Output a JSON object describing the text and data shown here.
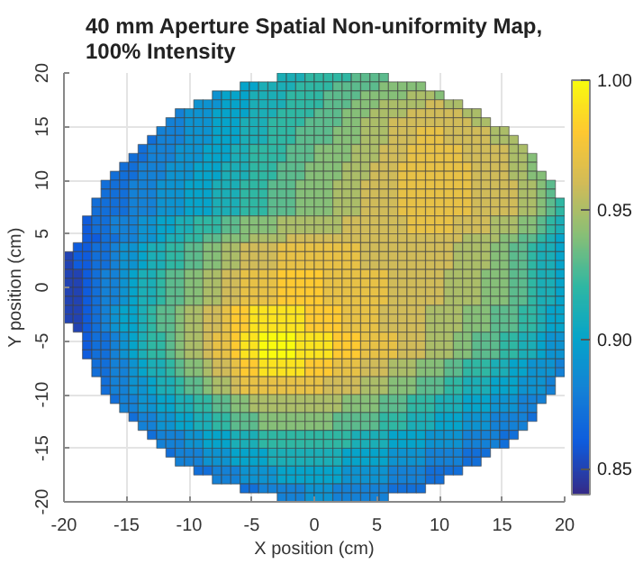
{
  "chart_data": {
    "type": "heatmap",
    "title": "40 mm Aperture Spatial Non-uniformity Map,\n100% Intensity",
    "xlabel": "X position (cm)",
    "ylabel": "Y position (cm)",
    "xlim": [
      -20,
      20
    ],
    "ylim": [
      -20,
      20
    ],
    "xticks": [
      -20,
      -15,
      -10,
      -5,
      0,
      5,
      10,
      15,
      20
    ],
    "yticks": [
      -20,
      -15,
      -10,
      -5,
      0,
      5,
      10,
      15,
      20
    ],
    "clim": [
      0.84,
      1.0
    ],
    "cticks": [
      {
        "value": 0.85,
        "label": "0.85"
      },
      {
        "value": 0.9,
        "label": "0.90"
      },
      {
        "value": 0.95,
        "label": "0.95"
      },
      {
        "value": 1.0,
        "label": "1.00"
      }
    ],
    "grid": true,
    "cells": [
      [
        null,
        null,
        null,
        null,
        null,
        null,
        null,
        null,
        null,
        null,
        null,
        null,
        null,
        null,
        null,
        null,
        null,
        null,
        null,
        null,
        null,
        null,
        null,
        0.91,
        0.91,
        0.91,
        0.92,
        0.92,
        0.92,
        0.92,
        0.92,
        0.93,
        0.93,
        0.93,
        0.93,
        null,
        null,
        null,
        null,
        null,
        null,
        null,
        null,
        null,
        null,
        null,
        null,
        null,
        null,
        null,
        null,
        null,
        null,
        null
      ],
      [
        null,
        null,
        null,
        null,
        null,
        null,
        null,
        null,
        null,
        null,
        null,
        null,
        null,
        null,
        null,
        null,
        null,
        null,
        null,
        0.9,
        0.9,
        0.91,
        0.91,
        0.91,
        0.91,
        0.92,
        0.92,
        0.92,
        0.92,
        0.93,
        0.93,
        0.93,
        0.93,
        0.93,
        0.94,
        0.94,
        0.94,
        0.94,
        0.94,
        null,
        null,
        null,
        null,
        null,
        null,
        null,
        null,
        null,
        null,
        null,
        null,
        null,
        null,
        null
      ],
      [
        null,
        null,
        null,
        null,
        null,
        null,
        null,
        null,
        null,
        null,
        null,
        null,
        null,
        null,
        null,
        null,
        0.89,
        0.9,
        0.9,
        0.9,
        0.91,
        0.91,
        0.91,
        0.91,
        0.92,
        0.92,
        0.92,
        0.92,
        0.93,
        0.93,
        0.93,
        0.93,
        0.94,
        0.94,
        0.94,
        0.94,
        0.94,
        0.95,
        0.95,
        0.95,
        0.94,
        null,
        null,
        null,
        null,
        null,
        null,
        null,
        null,
        null,
        null,
        null,
        null,
        null
      ],
      [
        null,
        null,
        null,
        null,
        null,
        null,
        null,
        null,
        null,
        null,
        null,
        null,
        null,
        null,
        0.89,
        0.89,
        0.89,
        0.9,
        0.9,
        0.9,
        0.91,
        0.91,
        0.91,
        0.91,
        0.92,
        0.92,
        0.92,
        0.92,
        0.93,
        0.93,
        0.93,
        0.94,
        0.94,
        0.94,
        0.95,
        0.95,
        0.95,
        0.95,
        0.95,
        0.96,
        0.96,
        0.95,
        0.95,
        null,
        null,
        null,
        null,
        null,
        null,
        null,
        null,
        null,
        null,
        null
      ],
      [
        null,
        null,
        null,
        null,
        null,
        null,
        null,
        null,
        null,
        null,
        null,
        null,
        0.88,
        0.89,
        0.89,
        0.89,
        0.9,
        0.9,
        0.9,
        0.9,
        0.91,
        0.91,
        0.91,
        0.92,
        0.92,
        0.92,
        0.92,
        0.93,
        0.93,
        0.93,
        0.94,
        0.94,
        0.94,
        0.95,
        0.95,
        0.95,
        0.95,
        0.96,
        0.96,
        0.96,
        0.96,
        0.96,
        0.96,
        0.95,
        0.95,
        null,
        null,
        null,
        null,
        null,
        null,
        null,
        null,
        null
      ],
      [
        null,
        null,
        null,
        null,
        null,
        null,
        null,
        null,
        null,
        null,
        null,
        0.88,
        0.88,
        0.89,
        0.89,
        0.89,
        0.9,
        0.9,
        0.9,
        0.91,
        0.91,
        0.91,
        0.92,
        0.92,
        0.92,
        0.92,
        0.93,
        0.93,
        0.93,
        0.93,
        0.94,
        0.94,
        0.95,
        0.95,
        0.95,
        0.96,
        0.96,
        0.96,
        0.96,
        0.96,
        0.96,
        0.96,
        0.96,
        0.96,
        0.95,
        0.95,
        null,
        null,
        null,
        null,
        null,
        null,
        null,
        null
      ],
      [
        null,
        null,
        null,
        null,
        null,
        null,
        null,
        null,
        null,
        null,
        0.88,
        0.88,
        0.88,
        0.89,
        0.89,
        0.89,
        0.9,
        0.9,
        0.9,
        0.91,
        0.91,
        0.91,
        0.92,
        0.92,
        0.92,
        0.93,
        0.93,
        0.93,
        0.93,
        0.94,
        0.94,
        0.94,
        0.95,
        0.95,
        0.95,
        0.96,
        0.96,
        0.96,
        0.97,
        0.97,
        0.97,
        0.96,
        0.96,
        0.96,
        0.96,
        0.96,
        0.95,
        0.95,
        null,
        null,
        null,
        null,
        null,
        null
      ],
      [
        null,
        null,
        null,
        null,
        null,
        null,
        null,
        null,
        null,
        0.87,
        0.88,
        0.88,
        0.88,
        0.89,
        0.89,
        0.89,
        0.9,
        0.9,
        0.9,
        0.91,
        0.91,
        0.91,
        0.92,
        0.92,
        0.92,
        0.93,
        0.93,
        0.93,
        0.93,
        0.94,
        0.94,
        0.94,
        0.95,
        0.95,
        0.95,
        0.96,
        0.96,
        0.96,
        0.97,
        0.97,
        0.97,
        0.96,
        0.96,
        0.96,
        0.96,
        0.96,
        0.95,
        0.95,
        0.95,
        null,
        null,
        null,
        null,
        null
      ],
      [
        null,
        null,
        null,
        null,
        null,
        null,
        null,
        null,
        0.87,
        0.88,
        0.88,
        0.88,
        0.89,
        0.89,
        0.89,
        0.9,
        0.9,
        0.9,
        0.91,
        0.91,
        0.92,
        0.92,
        0.92,
        0.92,
        0.93,
        0.93,
        0.93,
        0.94,
        0.94,
        0.94,
        0.94,
        0.95,
        0.95,
        0.95,
        0.96,
        0.96,
        0.96,
        0.97,
        0.97,
        0.97,
        0.97,
        0.97,
        0.97,
        0.96,
        0.96,
        0.96,
        0.96,
        0.96,
        0.95,
        0.95,
        null,
        null,
        null,
        null
      ],
      [
        null,
        null,
        null,
        null,
        null,
        null,
        null,
        0.87,
        0.87,
        0.88,
        0.88,
        0.88,
        0.89,
        0.89,
        0.89,
        0.9,
        0.9,
        0.9,
        0.91,
        0.91,
        0.92,
        0.92,
        0.92,
        0.92,
        0.93,
        0.93,
        0.93,
        0.94,
        0.94,
        0.94,
        0.94,
        0.95,
        0.95,
        0.95,
        0.96,
        0.96,
        0.96,
        0.97,
        0.97,
        0.97,
        0.97,
        0.97,
        0.97,
        0.96,
        0.96,
        0.96,
        0.96,
        0.96,
        0.95,
        0.95,
        0.94,
        null,
        null,
        null
      ],
      [
        null,
        null,
        null,
        null,
        null,
        null,
        0.87,
        0.87,
        0.88,
        0.88,
        0.88,
        0.89,
        0.89,
        0.89,
        0.9,
        0.9,
        0.9,
        0.91,
        0.91,
        0.91,
        0.92,
        0.92,
        0.92,
        0.93,
        0.93,
        0.93,
        0.94,
        0.94,
        0.94,
        0.94,
        0.95,
        0.95,
        0.95,
        0.96,
        0.96,
        0.96,
        0.97,
        0.97,
        0.97,
        0.97,
        0.97,
        0.97,
        0.97,
        0.97,
        0.96,
        0.96,
        0.96,
        0.96,
        0.95,
        0.95,
        0.94,
        null,
        null,
        null
      ],
      [
        null,
        null,
        null,
        null,
        null,
        0.87,
        0.87,
        0.87,
        0.88,
        0.88,
        0.88,
        0.89,
        0.89,
        0.89,
        0.9,
        0.9,
        0.9,
        0.91,
        0.91,
        0.91,
        0.92,
        0.92,
        0.92,
        0.93,
        0.93,
        0.93,
        0.94,
        0.94,
        0.94,
        0.94,
        0.95,
        0.95,
        0.95,
        0.96,
        0.96,
        0.96,
        0.97,
        0.97,
        0.97,
        0.97,
        0.97,
        0.97,
        0.97,
        0.97,
        0.96,
        0.96,
        0.96,
        0.96,
        0.95,
        0.95,
        0.94,
        0.94,
        null,
        null
      ],
      [
        null,
        null,
        null,
        null,
        0.87,
        0.87,
        0.87,
        0.88,
        0.88,
        0.88,
        0.89,
        0.89,
        0.89,
        0.9,
        0.9,
        0.9,
        0.91,
        0.91,
        0.91,
        0.92,
        0.92,
        0.92,
        0.93,
        0.93,
        0.93,
        0.94,
        0.94,
        0.94,
        0.94,
        0.95,
        0.95,
        0.95,
        0.96,
        0.96,
        0.96,
        0.96,
        0.97,
        0.97,
        0.97,
        0.97,
        0.97,
        0.97,
        0.97,
        0.97,
        0.96,
        0.96,
        0.96,
        0.96,
        0.96,
        0.95,
        0.95,
        0.94,
        0.93,
        null
      ],
      [
        null,
        null,
        null,
        null,
        0.87,
        0.87,
        0.87,
        0.88,
        0.88,
        0.88,
        0.89,
        0.89,
        0.89,
        0.9,
        0.9,
        0.9,
        0.91,
        0.91,
        0.91,
        0.92,
        0.92,
        0.92,
        0.93,
        0.93,
        0.93,
        0.94,
        0.94,
        0.94,
        0.94,
        0.95,
        0.95,
        0.95,
        0.96,
        0.96,
        0.96,
        0.96,
        0.97,
        0.97,
        0.97,
        0.97,
        0.97,
        0.97,
        0.97,
        0.97,
        0.96,
        0.96,
        0.96,
        0.96,
        0.96,
        0.95,
        0.95,
        0.94,
        0.93,
        null
      ],
      [
        null,
        null,
        null,
        0.87,
        0.87,
        0.87,
        0.87,
        0.88,
        0.88,
        0.88,
        0.89,
        0.89,
        0.89,
        0.9,
        0.9,
        0.9,
        0.91,
        0.91,
        0.91,
        0.92,
        0.92,
        0.92,
        0.93,
        0.93,
        0.93,
        0.94,
        0.94,
        0.94,
        0.94,
        0.95,
        0.95,
        0.95,
        0.96,
        0.96,
        0.96,
        0.96,
        0.97,
        0.97,
        0.97,
        0.97,
        0.97,
        0.97,
        0.97,
        0.97,
        0.96,
        0.96,
        0.96,
        0.96,
        0.96,
        0.95,
        0.95,
        0.94,
        0.93,
        0.92
      ],
      [
        null,
        null,
        null,
        0.87,
        0.87,
        0.87,
        0.87,
        0.88,
        0.88,
        0.88,
        0.89,
        0.89,
        0.89,
        0.9,
        0.9,
        0.9,
        0.91,
        0.91,
        0.91,
        0.92,
        0.92,
        0.92,
        0.93,
        0.93,
        0.93,
        0.94,
        0.94,
        0.94,
        0.94,
        0.95,
        0.95,
        0.95,
        0.96,
        0.96,
        0.96,
        0.96,
        0.97,
        0.97,
        0.97,
        0.97,
        0.97,
        0.97,
        0.97,
        0.97,
        0.96,
        0.96,
        0.96,
        0.96,
        0.96,
        0.95,
        0.95,
        0.94,
        0.93,
        0.92
      ],
      [
        null,
        null,
        0.86,
        0.87,
        0.87,
        0.88,
        0.88,
        0.88,
        0.89,
        0.89,
        0.9,
        0.9,
        0.91,
        0.91,
        0.92,
        0.92,
        0.92,
        0.93,
        0.93,
        0.94,
        0.94,
        0.94,
        0.94,
        0.95,
        0.95,
        0.95,
        0.95,
        0.95,
        0.95,
        0.95,
        0.96,
        0.96,
        0.96,
        0.96,
        0.96,
        0.96,
        0.96,
        0.97,
        0.97,
        0.97,
        0.97,
        0.97,
        0.96,
        0.96,
        0.96,
        0.96,
        0.95,
        0.95,
        0.95,
        0.94,
        0.94,
        0.93,
        0.92,
        0.91
      ],
      [
        null,
        null,
        0.86,
        0.87,
        0.87,
        0.88,
        0.88,
        0.88,
        0.89,
        0.89,
        0.9,
        0.9,
        0.91,
        0.91,
        0.92,
        0.92,
        0.92,
        0.93,
        0.93,
        0.94,
        0.94,
        0.94,
        0.94,
        0.95,
        0.95,
        0.95,
        0.95,
        0.95,
        0.95,
        0.95,
        0.96,
        0.96,
        0.96,
        0.96,
        0.96,
        0.96,
        0.96,
        0.97,
        0.97,
        0.97,
        0.97,
        0.97,
        0.96,
        0.96,
        0.96,
        0.96,
        0.95,
        0.95,
        0.95,
        0.94,
        0.94,
        0.93,
        0.92,
        0.91
      ],
      [
        null,
        null,
        0.86,
        0.86,
        0.87,
        0.87,
        0.88,
        0.88,
        0.89,
        0.89,
        0.9,
        0.91,
        0.91,
        0.92,
        0.92,
        0.93,
        0.93,
        0.94,
        0.94,
        0.94,
        0.95,
        0.95,
        0.95,
        0.95,
        0.96,
        0.96,
        0.96,
        0.96,
        0.96,
        0.96,
        0.96,
        0.96,
        0.96,
        0.96,
        0.96,
        0.96,
        0.96,
        0.96,
        0.96,
        0.96,
        0.96,
        0.96,
        0.96,
        0.95,
        0.95,
        0.95,
        0.95,
        0.94,
        0.94,
        0.93,
        0.93,
        0.92,
        0.91,
        0.9
      ],
      [
        null,
        0.86,
        0.86,
        0.87,
        0.87,
        0.88,
        0.89,
        0.89,
        0.9,
        0.91,
        0.91,
        0.92,
        0.92,
        0.93,
        0.93,
        0.94,
        0.94,
        0.95,
        0.95,
        0.96,
        0.96,
        0.96,
        0.96,
        0.97,
        0.97,
        0.97,
        0.97,
        0.97,
        0.97,
        0.97,
        0.97,
        0.97,
        0.96,
        0.96,
        0.96,
        0.96,
        0.96,
        0.96,
        0.96,
        0.96,
        0.96,
        0.96,
        0.95,
        0.95,
        0.95,
        0.95,
        0.94,
        0.94,
        0.93,
        0.93,
        0.92,
        0.91,
        0.91,
        0.9
      ],
      [
        0.85,
        0.86,
        0.86,
        0.87,
        0.87,
        0.88,
        0.89,
        0.89,
        0.9,
        0.91,
        0.91,
        0.92,
        0.92,
        0.93,
        0.93,
        0.94,
        0.94,
        0.95,
        0.95,
        0.96,
        0.96,
        0.96,
        0.96,
        0.97,
        0.97,
        0.97,
        0.97,
        0.97,
        0.97,
        0.97,
        0.97,
        0.97,
        0.96,
        0.96,
        0.96,
        0.96,
        0.96,
        0.96,
        0.96,
        0.96,
        0.96,
        0.96,
        0.95,
        0.95,
        0.95,
        0.95,
        0.94,
        0.94,
        0.93,
        0.93,
        0.92,
        0.91,
        0.91,
        0.9
      ],
      [
        0.85,
        0.86,
        0.86,
        0.87,
        0.87,
        0.88,
        0.89,
        0.89,
        0.9,
        0.91,
        0.91,
        0.92,
        0.92,
        0.93,
        0.93,
        0.94,
        0.94,
        0.95,
        0.95,
        0.96,
        0.96,
        0.96,
        0.96,
        0.97,
        0.97,
        0.97,
        0.97,
        0.97,
        0.97,
        0.97,
        0.97,
        0.97,
        0.96,
        0.96,
        0.96,
        0.96,
        0.96,
        0.96,
        0.96,
        0.96,
        0.96,
        0.96,
        0.95,
        0.95,
        0.95,
        0.95,
        0.94,
        0.94,
        0.93,
        0.93,
        0.92,
        0.91,
        0.91,
        0.9
      ],
      [
        0.85,
        0.85,
        0.86,
        0.87,
        0.88,
        0.88,
        0.89,
        0.9,
        0.91,
        0.91,
        0.92,
        0.93,
        0.93,
        0.94,
        0.94,
        0.95,
        0.95,
        0.96,
        0.96,
        0.97,
        0.97,
        0.97,
        0.97,
        0.98,
        0.98,
        0.98,
        0.98,
        0.98,
        0.97,
        0.97,
        0.97,
        0.97,
        0.97,
        0.97,
        0.97,
        0.96,
        0.96,
        0.96,
        0.96,
        0.96,
        0.96,
        0.95,
        0.95,
        0.95,
        0.95,
        0.94,
        0.94,
        0.94,
        0.93,
        0.93,
        0.92,
        0.91,
        0.91,
        0.9
      ],
      [
        0.85,
        0.85,
        0.86,
        0.87,
        0.88,
        0.88,
        0.89,
        0.9,
        0.91,
        0.91,
        0.92,
        0.93,
        0.93,
        0.94,
        0.94,
        0.95,
        0.95,
        0.96,
        0.96,
        0.97,
        0.97,
        0.97,
        0.97,
        0.98,
        0.98,
        0.98,
        0.98,
        0.98,
        0.97,
        0.97,
        0.97,
        0.97,
        0.97,
        0.97,
        0.97,
        0.96,
        0.96,
        0.96,
        0.96,
        0.96,
        0.96,
        0.95,
        0.95,
        0.95,
        0.95,
        0.94,
        0.94,
        0.94,
        0.93,
        0.93,
        0.92,
        0.91,
        0.91,
        0.9
      ],
      [
        0.85,
        0.85,
        0.86,
        0.87,
        0.88,
        0.88,
        0.89,
        0.9,
        0.91,
        0.91,
        0.92,
        0.93,
        0.93,
        0.94,
        0.94,
        0.95,
        0.95,
        0.96,
        0.96,
        0.97,
        0.97,
        0.97,
        0.97,
        0.98,
        0.98,
        0.98,
        0.98,
        0.98,
        0.97,
        0.97,
        0.97,
        0.97,
        0.97,
        0.97,
        0.97,
        0.96,
        0.96,
        0.96,
        0.96,
        0.96,
        0.96,
        0.95,
        0.95,
        0.95,
        0.95,
        0.94,
        0.94,
        0.94,
        0.93,
        0.93,
        0.92,
        0.91,
        0.91,
        0.9
      ],
      [
        0.85,
        0.85,
        0.86,
        0.87,
        0.88,
        0.88,
        0.89,
        0.9,
        0.91,
        0.91,
        0.92,
        0.93,
        0.93,
        0.94,
        0.94,
        0.95,
        0.95,
        0.96,
        0.96,
        0.97,
        0.97,
        0.97,
        0.97,
        0.98,
        0.98,
        0.98,
        0.98,
        0.98,
        0.97,
        0.97,
        0.97,
        0.97,
        0.97,
        0.97,
        0.97,
        0.96,
        0.96,
        0.96,
        0.96,
        0.96,
        0.96,
        0.95,
        0.95,
        0.95,
        0.95,
        0.94,
        0.94,
        0.94,
        0.93,
        0.93,
        0.92,
        0.91,
        0.91,
        0.9
      ],
      [
        0.85,
        0.85,
        0.86,
        0.87,
        0.88,
        0.89,
        0.9,
        0.9,
        0.91,
        0.92,
        0.93,
        0.93,
        0.94,
        0.95,
        0.95,
        0.96,
        0.96,
        0.97,
        0.98,
        0.98,
        0.99,
        0.99,
        0.99,
        0.99,
        0.99,
        0.99,
        0.98,
        0.98,
        0.98,
        0.98,
        0.97,
        0.97,
        0.97,
        0.97,
        0.96,
        0.96,
        0.96,
        0.96,
        0.96,
        0.95,
        0.95,
        0.95,
        0.95,
        0.94,
        0.94,
        0.94,
        0.93,
        0.93,
        0.93,
        0.92,
        0.92,
        0.91,
        0.9,
        0.9
      ],
      [
        0.85,
        0.85,
        0.86,
        0.87,
        0.88,
        0.89,
        0.9,
        0.9,
        0.91,
        0.92,
        0.93,
        0.93,
        0.94,
        0.95,
        0.95,
        0.96,
        0.96,
        0.97,
        0.98,
        0.98,
        0.99,
        0.99,
        0.99,
        0.99,
        0.99,
        0.99,
        0.98,
        0.98,
        0.98,
        0.98,
        0.97,
        0.97,
        0.97,
        0.97,
        0.96,
        0.96,
        0.96,
        0.96,
        0.96,
        0.95,
        0.95,
        0.95,
        0.95,
        0.94,
        0.94,
        0.94,
        0.93,
        0.93,
        0.93,
        0.92,
        0.92,
        0.91,
        0.9,
        0.9
      ],
      [
        null,
        0.85,
        0.86,
        0.87,
        0.88,
        0.89,
        0.9,
        0.9,
        0.91,
        0.92,
        0.93,
        0.93,
        0.94,
        0.95,
        0.95,
        0.96,
        0.96,
        0.97,
        0.98,
        0.98,
        0.99,
        0.99,
        0.99,
        0.99,
        0.99,
        0.99,
        0.98,
        0.98,
        0.98,
        0.98,
        0.97,
        0.97,
        0.97,
        0.97,
        0.96,
        0.96,
        0.96,
        0.96,
        0.96,
        0.95,
        0.95,
        0.95,
        0.95,
        0.94,
        0.94,
        0.94,
        0.93,
        0.93,
        0.93,
        0.92,
        0.92,
        0.91,
        0.9,
        0.9
      ],
      [
        null,
        null,
        0.86,
        0.87,
        0.87,
        0.88,
        0.89,
        0.9,
        0.91,
        0.92,
        0.92,
        0.93,
        0.94,
        0.95,
        0.95,
        0.96,
        0.97,
        0.97,
        0.98,
        0.99,
        0.99,
        1.0,
        1.0,
        1.0,
        1.0,
        0.99,
        0.99,
        0.99,
        0.99,
        0.98,
        0.98,
        0.98,
        0.97,
        0.97,
        0.97,
        0.97,
        0.96,
        0.96,
        0.96,
        0.95,
        0.95,
        0.95,
        0.94,
        0.94,
        0.93,
        0.93,
        0.93,
        0.92,
        0.92,
        0.91,
        0.91,
        0.9,
        0.89,
        0.89
      ],
      [
        null,
        null,
        0.86,
        0.87,
        0.87,
        0.88,
        0.89,
        0.9,
        0.91,
        0.92,
        0.92,
        0.93,
        0.94,
        0.95,
        0.95,
        0.96,
        0.97,
        0.97,
        0.98,
        0.99,
        0.99,
        1.0,
        1.0,
        1.0,
        1.0,
        0.99,
        0.99,
        0.99,
        0.99,
        0.98,
        0.98,
        0.98,
        0.97,
        0.97,
        0.97,
        0.97,
        0.96,
        0.96,
        0.96,
        0.95,
        0.95,
        0.95,
        0.94,
        0.94,
        0.93,
        0.93,
        0.93,
        0.92,
        0.92,
        0.91,
        0.91,
        0.9,
        0.89,
        0.89
      ],
      [
        null,
        null,
        0.86,
        0.87,
        0.87,
        0.88,
        0.89,
        0.9,
        0.91,
        0.92,
        0.92,
        0.93,
        0.94,
        0.95,
        0.95,
        0.96,
        0.97,
        0.97,
        0.98,
        0.99,
        0.99,
        1.0,
        1.0,
        1.0,
        1.0,
        0.99,
        0.99,
        0.99,
        0.99,
        0.98,
        0.98,
        0.98,
        0.97,
        0.97,
        0.97,
        0.97,
        0.96,
        0.96,
        0.96,
        0.95,
        0.95,
        0.95,
        0.94,
        0.94,
        0.93,
        0.93,
        0.93,
        0.92,
        0.92,
        0.91,
        0.91,
        0.9,
        0.89,
        0.89
      ],
      [
        null,
        null,
        null,
        0.87,
        0.87,
        0.88,
        0.88,
        0.89,
        0.9,
        0.91,
        0.91,
        0.92,
        0.93,
        0.94,
        0.94,
        0.95,
        0.96,
        0.96,
        0.97,
        0.98,
        0.98,
        0.99,
        0.99,
        0.99,
        0.99,
        0.99,
        0.98,
        0.98,
        0.98,
        0.97,
        0.97,
        0.97,
        0.96,
        0.96,
        0.96,
        0.95,
        0.95,
        0.95,
        0.94,
        0.94,
        0.94,
        0.93,
        0.93,
        0.92,
        0.92,
        0.92,
        0.91,
        0.91,
        0.9,
        0.9,
        0.89,
        0.89,
        0.89,
        0.88
      ],
      [
        null,
        null,
        null,
        0.87,
        0.87,
        0.88,
        0.88,
        0.89,
        0.9,
        0.91,
        0.91,
        0.92,
        0.93,
        0.94,
        0.94,
        0.95,
        0.96,
        0.96,
        0.97,
        0.98,
        0.98,
        0.99,
        0.99,
        0.99,
        0.99,
        0.99,
        0.98,
        0.98,
        0.98,
        0.97,
        0.97,
        0.97,
        0.96,
        0.96,
        0.96,
        0.95,
        0.95,
        0.95,
        0.94,
        0.94,
        0.94,
        0.93,
        0.93,
        0.92,
        0.92,
        0.92,
        0.91,
        0.91,
        0.9,
        0.9,
        0.89,
        0.89,
        0.89,
        0.88
      ],
      [
        null,
        null,
        null,
        null,
        0.87,
        0.88,
        0.88,
        0.89,
        0.89,
        0.9,
        0.91,
        0.91,
        0.92,
        0.93,
        0.93,
        0.94,
        0.95,
        0.95,
        0.96,
        0.97,
        0.97,
        0.97,
        0.97,
        0.97,
        0.97,
        0.97,
        0.97,
        0.97,
        0.96,
        0.96,
        0.96,
        0.96,
        0.95,
        0.95,
        0.95,
        0.94,
        0.94,
        0.94,
        0.93,
        0.93,
        0.93,
        0.92,
        0.92,
        0.91,
        0.91,
        0.91,
        0.9,
        0.9,
        0.9,
        0.89,
        0.89,
        0.89,
        0.88,
        null
      ],
      [
        null,
        null,
        null,
        null,
        0.87,
        0.88,
        0.88,
        0.89,
        0.89,
        0.9,
        0.91,
        0.91,
        0.92,
        0.93,
        0.93,
        0.94,
        0.95,
        0.95,
        0.96,
        0.97,
        0.97,
        0.97,
        0.97,
        0.97,
        0.97,
        0.97,
        0.97,
        0.97,
        0.96,
        0.96,
        0.96,
        0.96,
        0.95,
        0.95,
        0.95,
        0.94,
        0.94,
        0.94,
        0.93,
        0.93,
        0.93,
        0.92,
        0.92,
        0.91,
        0.91,
        0.91,
        0.9,
        0.9,
        0.9,
        0.89,
        0.89,
        0.89,
        0.88,
        null
      ],
      [
        null,
        null,
        null,
        null,
        null,
        0.87,
        0.88,
        0.88,
        0.89,
        0.89,
        0.9,
        0.9,
        0.91,
        0.91,
        0.92,
        0.92,
        0.93,
        0.93,
        0.94,
        0.94,
        0.95,
        0.95,
        0.95,
        0.95,
        0.95,
        0.95,
        0.95,
        0.95,
        0.95,
        0.95,
        0.94,
        0.94,
        0.94,
        0.94,
        0.93,
        0.93,
        0.93,
        0.92,
        0.92,
        0.92,
        0.91,
        0.91,
        0.91,
        0.9,
        0.9,
        0.9,
        0.89,
        0.89,
        0.89,
        0.88,
        0.88,
        0.88,
        null,
        null
      ],
      [
        null,
        null,
        null,
        null,
        null,
        null,
        0.88,
        0.88,
        0.89,
        0.89,
        0.9,
        0.9,
        0.91,
        0.91,
        0.92,
        0.92,
        0.93,
        0.93,
        0.94,
        0.94,
        0.95,
        0.95,
        0.95,
        0.95,
        0.95,
        0.95,
        0.95,
        0.95,
        0.95,
        0.95,
        0.94,
        0.94,
        0.94,
        0.94,
        0.93,
        0.93,
        0.93,
        0.92,
        0.92,
        0.92,
        0.91,
        0.91,
        0.91,
        0.9,
        0.9,
        0.9,
        0.89,
        0.89,
        0.89,
        0.88,
        0.88,
        null,
        null,
        null
      ],
      [
        null,
        null,
        null,
        null,
        null,
        null,
        null,
        0.87,
        0.88,
        0.88,
        0.89,
        0.89,
        0.9,
        0.9,
        0.91,
        0.91,
        0.92,
        0.92,
        0.93,
        0.93,
        0.93,
        0.94,
        0.94,
        0.94,
        0.94,
        0.94,
        0.94,
        0.94,
        0.94,
        0.93,
        0.93,
        0.93,
        0.93,
        0.93,
        0.92,
        0.92,
        0.92,
        0.91,
        0.91,
        0.91,
        0.9,
        0.9,
        0.9,
        0.89,
        0.89,
        0.89,
        0.88,
        0.88,
        0.88,
        0.88,
        0.87,
        null,
        null,
        null
      ],
      [
        null,
        null,
        null,
        null,
        null,
        null,
        null,
        null,
        0.88,
        0.88,
        0.89,
        0.89,
        0.9,
        0.9,
        0.91,
        0.91,
        0.92,
        0.92,
        0.93,
        0.93,
        0.93,
        0.94,
        0.94,
        0.94,
        0.94,
        0.94,
        0.94,
        0.94,
        0.94,
        0.93,
        0.93,
        0.93,
        0.93,
        0.93,
        0.92,
        0.92,
        0.92,
        0.91,
        0.91,
        0.91,
        0.9,
        0.9,
        0.9,
        0.89,
        0.89,
        0.89,
        0.88,
        0.88,
        0.88,
        0.88,
        null,
        null,
        null,
        null
      ],
      [
        null,
        null,
        null,
        null,
        null,
        null,
        null,
        null,
        null,
        0.87,
        0.88,
        0.88,
        0.88,
        0.89,
        0.89,
        0.9,
        0.9,
        0.9,
        0.91,
        0.91,
        0.91,
        0.92,
        0.92,
        0.92,
        0.92,
        0.92,
        0.92,
        0.92,
        0.92,
        0.92,
        0.92,
        0.91,
        0.91,
        0.91,
        0.91,
        0.9,
        0.9,
        0.9,
        0.9,
        0.89,
        0.89,
        0.89,
        0.89,
        0.88,
        0.88,
        0.88,
        0.88,
        0.87,
        0.87,
        null,
        null,
        null,
        null,
        null
      ],
      [
        null,
        null,
        null,
        null,
        null,
        null,
        null,
        null,
        null,
        null,
        0.88,
        0.88,
        0.88,
        0.89,
        0.89,
        0.9,
        0.9,
        0.9,
        0.91,
        0.91,
        0.91,
        0.92,
        0.92,
        0.92,
        0.92,
        0.92,
        0.92,
        0.92,
        0.92,
        0.92,
        0.92,
        0.91,
        0.91,
        0.91,
        0.91,
        0.9,
        0.9,
        0.9,
        0.9,
        0.89,
        0.89,
        0.89,
        0.89,
        0.88,
        0.88,
        0.88,
        0.88,
        0.87,
        null,
        null,
        null,
        null,
        null,
        null
      ],
      [
        null,
        null,
        null,
        null,
        null,
        null,
        null,
        null,
        null,
        null,
        null,
        0.87,
        0.88,
        0.88,
        0.88,
        0.89,
        0.89,
        0.89,
        0.9,
        0.9,
        0.9,
        0.9,
        0.91,
        0.91,
        0.91,
        0.91,
        0.91,
        0.91,
        0.91,
        0.91,
        0.9,
        0.9,
        0.9,
        0.9,
        0.9,
        0.89,
        0.89,
        0.89,
        0.89,
        0.88,
        0.88,
        0.88,
        0.88,
        0.87,
        0.87,
        0.87,
        null,
        null,
        null,
        null,
        null,
        null,
        null,
        null
      ],
      [
        null,
        null,
        null,
        null,
        null,
        null,
        null,
        null,
        null,
        null,
        null,
        null,
        0.88,
        0.88,
        0.88,
        0.89,
        0.89,
        0.89,
        0.9,
        0.9,
        0.9,
        0.9,
        0.91,
        0.91,
        0.91,
        0.91,
        0.91,
        0.91,
        0.91,
        0.91,
        0.9,
        0.9,
        0.9,
        0.9,
        0.9,
        0.89,
        0.89,
        0.89,
        0.89,
        0.88,
        0.88,
        0.88,
        0.88,
        0.87,
        0.87,
        null,
        null,
        null,
        null,
        null,
        null,
        null,
        null,
        null
      ],
      [
        null,
        null,
        null,
        null,
        null,
        null,
        null,
        null,
        null,
        null,
        null,
        null,
        null,
        null,
        0.87,
        0.87,
        0.88,
        0.88,
        0.88,
        0.89,
        0.89,
        0.89,
        0.89,
        0.9,
        0.9,
        0.9,
        0.9,
        0.9,
        0.9,
        0.9,
        0.89,
        0.89,
        0.89,
        0.89,
        0.89,
        0.88,
        0.88,
        0.88,
        0.88,
        0.87,
        0.87,
        0.87,
        0.87,
        null,
        null,
        null,
        null,
        null,
        null,
        null,
        null,
        null,
        null,
        null
      ],
      [
        null,
        null,
        null,
        null,
        null,
        null,
        null,
        null,
        null,
        null,
        null,
        null,
        null,
        null,
        null,
        null,
        0.88,
        0.88,
        0.88,
        0.89,
        0.89,
        0.89,
        0.89,
        0.9,
        0.9,
        0.9,
        0.9,
        0.9,
        0.9,
        0.9,
        0.89,
        0.89,
        0.89,
        0.89,
        0.89,
        0.88,
        0.88,
        0.88,
        0.88,
        0.87,
        0.87,
        null,
        null,
        null,
        null,
        null,
        null,
        null,
        null,
        null,
        null,
        null,
        null,
        null
      ],
      [
        null,
        null,
        null,
        null,
        null,
        null,
        null,
        null,
        null,
        null,
        null,
        null,
        null,
        null,
        null,
        null,
        null,
        null,
        null,
        0.87,
        0.87,
        0.88,
        0.88,
        0.88,
        0.88,
        0.88,
        0.89,
        0.89,
        0.89,
        0.88,
        0.88,
        0.88,
        0.88,
        0.88,
        0.88,
        0.87,
        0.87,
        0.87,
        0.87,
        null,
        null,
        null,
        null,
        null,
        null,
        null,
        null,
        null,
        null,
        null,
        null,
        null,
        null,
        null
      ],
      [
        null,
        null,
        null,
        null,
        null,
        null,
        null,
        null,
        null,
        null,
        null,
        null,
        null,
        null,
        null,
        null,
        null,
        null,
        null,
        null,
        null,
        null,
        null,
        0.88,
        0.88,
        0.88,
        0.89,
        0.89,
        0.89,
        0.88,
        0.88,
        0.88,
        0.88,
        0.88,
        0.88,
        null,
        null,
        null,
        null,
        null,
        null,
        null,
        null,
        null,
        null,
        null,
        null,
        null,
        null,
        null,
        null,
        null,
        null,
        null
      ]
    ]
  }
}
